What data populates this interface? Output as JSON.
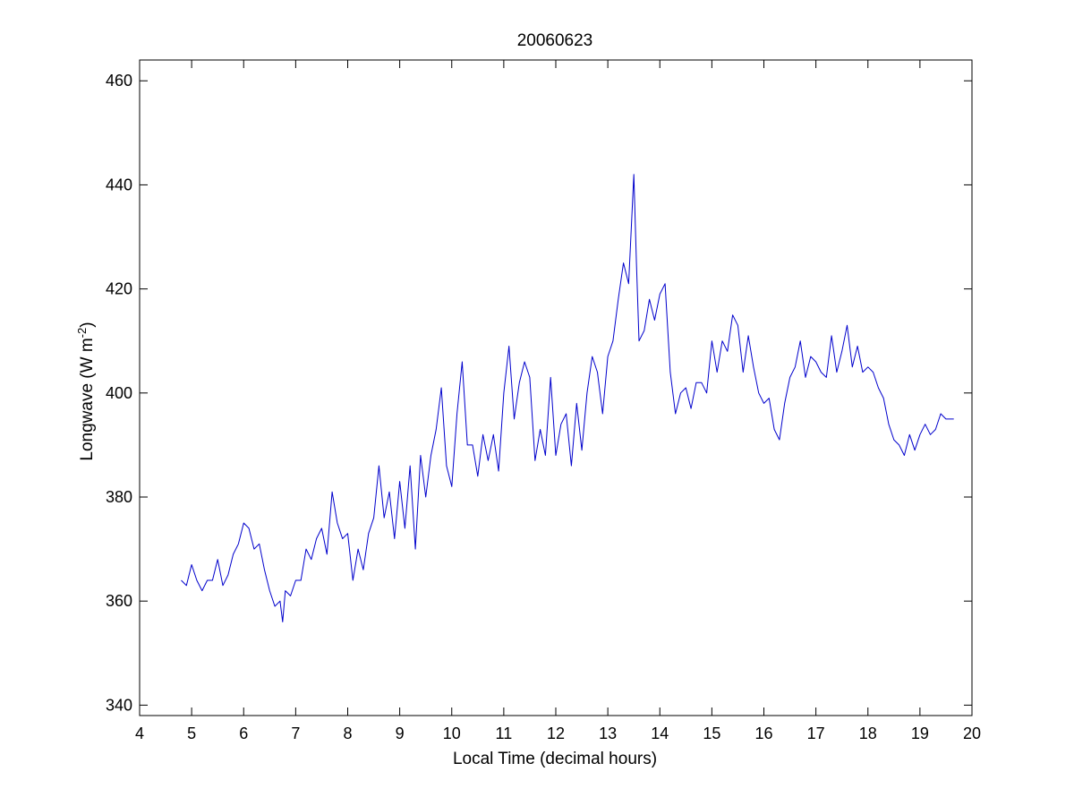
{
  "chart_data": {
    "type": "line",
    "title": "20060623",
    "xlabel": "Local Time (decimal hours)",
    "ylabel": {
      "main": "Longwave (W m",
      "sup": "-2",
      "close": ")"
    },
    "xlim": [
      4,
      20
    ],
    "ylim": [
      338,
      464
    ],
    "xticks": [
      "4",
      "5",
      "6",
      "7",
      "8",
      "9",
      "10",
      "11",
      "12",
      "13",
      "14",
      "15",
      "16",
      "17",
      "18",
      "19",
      "20"
    ],
    "yticks": [
      "340",
      "360",
      "380",
      "400",
      "420",
      "440",
      "460"
    ],
    "grid": false,
    "line_color": "#0000cc",
    "series": [
      {
        "x": [
          4.8,
          4.9,
          5.0,
          5.1,
          5.2,
          5.3,
          5.4,
          5.5,
          5.6,
          5.7,
          5.8,
          5.9,
          6.0,
          6.1,
          6.2,
          6.3,
          6.4,
          6.5,
          6.6,
          6.7,
          6.75,
          6.8,
          6.9,
          7.0,
          7.1,
          7.2,
          7.3,
          7.4,
          7.5,
          7.6,
          7.7,
          7.8,
          7.9,
          8.0,
          8.1,
          8.2,
          8.3,
          8.4,
          8.5,
          8.6,
          8.7,
          8.8,
          8.9,
          9.0,
          9.1,
          9.2,
          9.3,
          9.4,
          9.5,
          9.6,
          9.7,
          9.8,
          9.9,
          10.0,
          10.1,
          10.2,
          10.3,
          10.4,
          10.5,
          10.6,
          10.7,
          10.8,
          10.9,
          11.0,
          11.1,
          11.2,
          11.3,
          11.4,
          11.5,
          11.6,
          11.7,
          11.8,
          11.9,
          12.0,
          12.1,
          12.2,
          12.3,
          12.4,
          12.5,
          12.6,
          12.7,
          12.8,
          12.9,
          13.0,
          13.1,
          13.2,
          13.3,
          13.4,
          13.5,
          13.55,
          13.6,
          13.7,
          13.8,
          13.9,
          14.0,
          14.1,
          14.2,
          14.3,
          14.4,
          14.5,
          14.6,
          14.7,
          14.8,
          14.9,
          15.0,
          15.1,
          15.2,
          15.3,
          15.4,
          15.5,
          15.6,
          15.7,
          15.8,
          15.9,
          16.0,
          16.1,
          16.2,
          16.3,
          16.4,
          16.5,
          16.6,
          16.7,
          16.8,
          16.9,
          17.0,
          17.1,
          17.2,
          17.3,
          17.4,
          17.5,
          17.6,
          17.7,
          17.8,
          17.9,
          18.0,
          18.1,
          18.2,
          18.3,
          18.4,
          18.5,
          18.6,
          18.7,
          18.8,
          18.9,
          19.0,
          19.1,
          19.2,
          19.3,
          19.4,
          19.5,
          19.6,
          19.65
        ],
        "y": [
          364,
          363,
          367,
          364,
          362,
          364,
          364,
          368,
          363,
          365,
          369,
          371,
          375,
          374,
          370,
          371,
          366,
          362,
          359,
          360,
          356,
          362,
          361,
          364,
          364,
          370,
          368,
          372,
          374,
          369,
          381,
          375,
          372,
          373,
          364,
          370,
          366,
          373,
          376,
          386,
          376,
          381,
          372,
          383,
          374,
          386,
          370,
          388,
          380,
          388,
          393,
          401,
          386,
          382,
          396,
          406,
          390,
          390,
          384,
          392,
          387,
          392,
          385,
          400,
          409,
          395,
          402,
          406,
          403,
          387,
          393,
          388,
          403,
          388,
          394,
          396,
          386,
          398,
          389,
          400,
          407,
          404,
          396,
          407,
          410,
          418,
          425,
          421,
          442,
          425,
          410,
          412,
          418,
          414,
          419,
          421,
          404,
          396,
          400,
          401,
          397,
          402,
          402,
          400,
          410,
          404,
          410,
          408,
          415,
          413,
          404,
          411,
          405,
          400,
          398,
          399,
          393,
          391,
          398,
          403,
          405,
          410,
          403,
          407,
          406,
          404,
          403,
          411,
          404,
          408,
          413,
          405,
          409,
          404,
          405,
          404,
          401,
          399,
          394,
          391,
          390,
          388,
          392,
          389,
          392,
          394,
          392,
          393,
          396,
          395,
          395,
          395
        ]
      }
    ]
  }
}
